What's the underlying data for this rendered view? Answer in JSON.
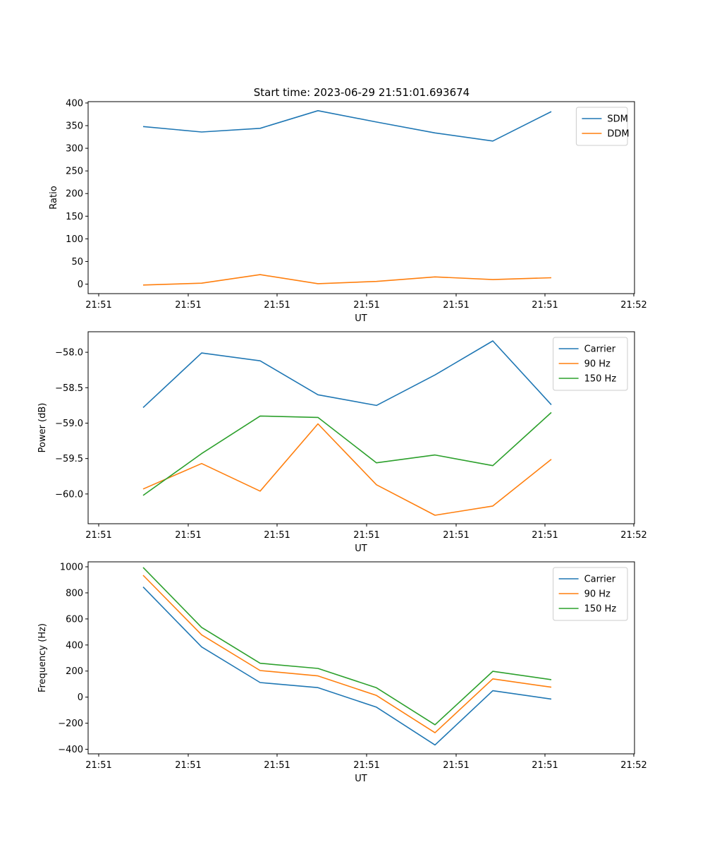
{
  "title": "Start time: 2023-06-29 21:51:01.693674",
  "colors": {
    "blue": "#1f77b4",
    "orange": "#ff7f0e",
    "green": "#2ca02c"
  },
  "chart_data": [
    {
      "type": "line",
      "title": "Start time: 2023-06-29 21:51:01.693674",
      "xlabel": "UT",
      "ylabel": "Ratio",
      "x_tick_labels": [
        "21:51",
        "21:51",
        "21:51",
        "21:51",
        "21:51",
        "21:51",
        "21:52"
      ],
      "y_ticks": [
        0,
        50,
        100,
        150,
        200,
        250,
        300,
        350,
        400
      ],
      "y_tick_labels": [
        "0",
        "50",
        "100",
        "150",
        "200",
        "250",
        "300",
        "350",
        "400"
      ],
      "ylim": [
        -21,
        403
      ],
      "legend_position": "top-right",
      "series": [
        {
          "name": "SDM",
          "color": "#1f77b4",
          "values": [
            348,
            336,
            344,
            383,
            358,
            334,
            316,
            381
          ]
        },
        {
          "name": "DDM",
          "color": "#ff7f0e",
          "values": [
            -2,
            2,
            21,
            1,
            6,
            16,
            10,
            14
          ]
        }
      ]
    },
    {
      "type": "line",
      "xlabel": "UT",
      "ylabel": "Power (dB)",
      "x_tick_labels": [
        "21:51",
        "21:51",
        "21:51",
        "21:51",
        "21:51",
        "21:51",
        "21:52"
      ],
      "y_ticks": [
        -60.0,
        -59.5,
        -59.0,
        -58.5,
        -58.0
      ],
      "y_tick_labels": [
        "−60.0",
        "−59.5",
        "−59.0",
        "−58.5",
        "−58.0"
      ],
      "ylim": [
        -60.42,
        -57.71
      ],
      "legend_position": "top-right",
      "series": [
        {
          "name": "Carrier",
          "color": "#1f77b4",
          "values": [
            -58.78,
            -58.01,
            -58.12,
            -58.6,
            -58.75,
            -58.32,
            -57.84,
            -58.74
          ]
        },
        {
          "name": "90 Hz",
          "color": "#ff7f0e",
          "values": [
            -59.93,
            -59.57,
            -59.96,
            -59.01,
            -59.87,
            -60.3,
            -60.17,
            -59.51
          ]
        },
        {
          "name": "150 Hz",
          "color": "#2ca02c",
          "values": [
            -60.02,
            -59.43,
            -58.9,
            -58.92,
            -59.56,
            -59.45,
            -59.6,
            -58.85
          ]
        }
      ]
    },
    {
      "type": "line",
      "xlabel": "UT",
      "ylabel": "Frequency (Hz)",
      "x_tick_labels": [
        "21:51",
        "21:51",
        "21:51",
        "21:51",
        "21:51",
        "21:51",
        "21:52"
      ],
      "y_ticks": [
        -400,
        -200,
        0,
        200,
        400,
        600,
        800,
        1000
      ],
      "y_tick_labels": [
        "−400",
        "−200",
        "0",
        "200",
        "400",
        "600",
        "800",
        "1000"
      ],
      "ylim": [
        -435,
        1038
      ],
      "legend_position": "top-right",
      "series": [
        {
          "name": "Carrier",
          "color": "#1f77b4",
          "values": [
            845,
            385,
            112,
            73,
            -77,
            -367,
            49,
            -15
          ]
        },
        {
          "name": "90 Hz",
          "color": "#ff7f0e",
          "values": [
            935,
            478,
            204,
            163,
            13,
            -273,
            140,
            76
          ]
        },
        {
          "name": "150 Hz",
          "color": "#2ca02c",
          "values": [
            995,
            535,
            260,
            220,
            72,
            -212,
            198,
            134
          ]
        }
      ]
    }
  ]
}
